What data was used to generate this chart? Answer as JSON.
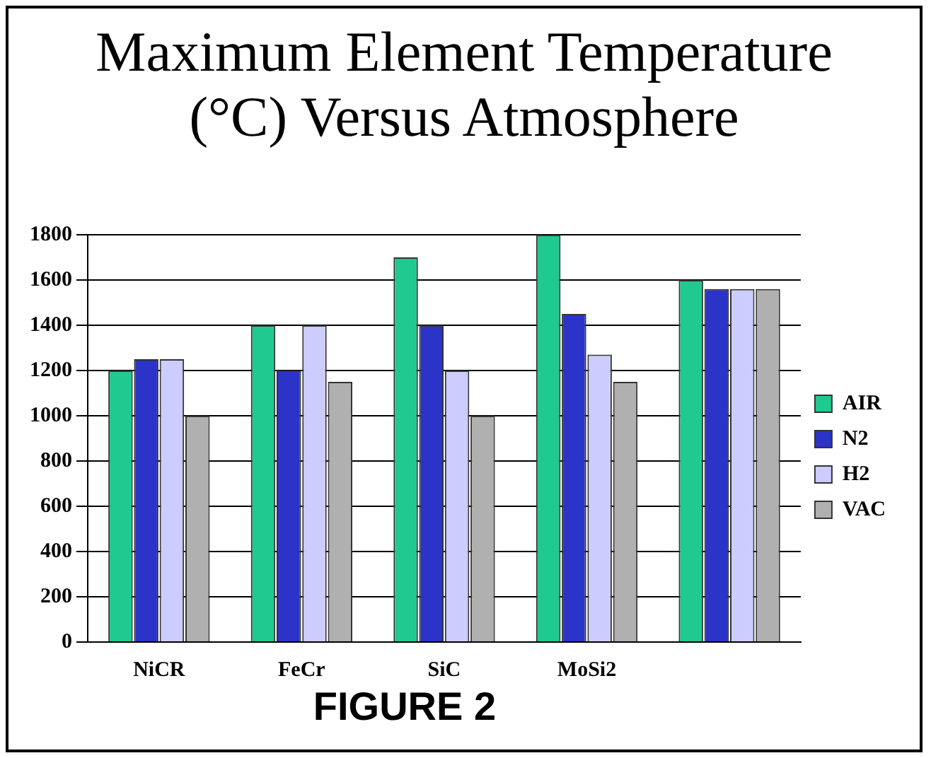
{
  "chart_data": {
    "type": "bar",
    "title": "Maximum Element Temperature (°C) Versus Atmosphere",
    "categories": [
      "NiCR",
      "FeCr",
      "SiC",
      "MoSi2",
      null
    ],
    "series": [
      {
        "name": "AIR",
        "color": "#1fc98f",
        "values": [
          1200,
          1400,
          1700,
          1800,
          1600
        ]
      },
      {
        "name": "N2",
        "color": "#2b33c8",
        "values": [
          1250,
          1200,
          1400,
          1450,
          1560
        ]
      },
      {
        "name": "H2",
        "color": "#ccccff",
        "values": [
          1250,
          1400,
          1200,
          1270,
          1560
        ]
      },
      {
        "name": "VAC",
        "color": "#b0b0b0",
        "values": [
          1000,
          1150,
          1000,
          1150,
          1560
        ]
      }
    ],
    "ylim": [
      0,
      1800
    ],
    "yticks": [
      0,
      200,
      400,
      600,
      800,
      1000,
      1200,
      1400,
      1600,
      1800
    ],
    "grid": "y",
    "legend": "right",
    "annotations": [
      "FIGURE 2"
    ]
  }
}
